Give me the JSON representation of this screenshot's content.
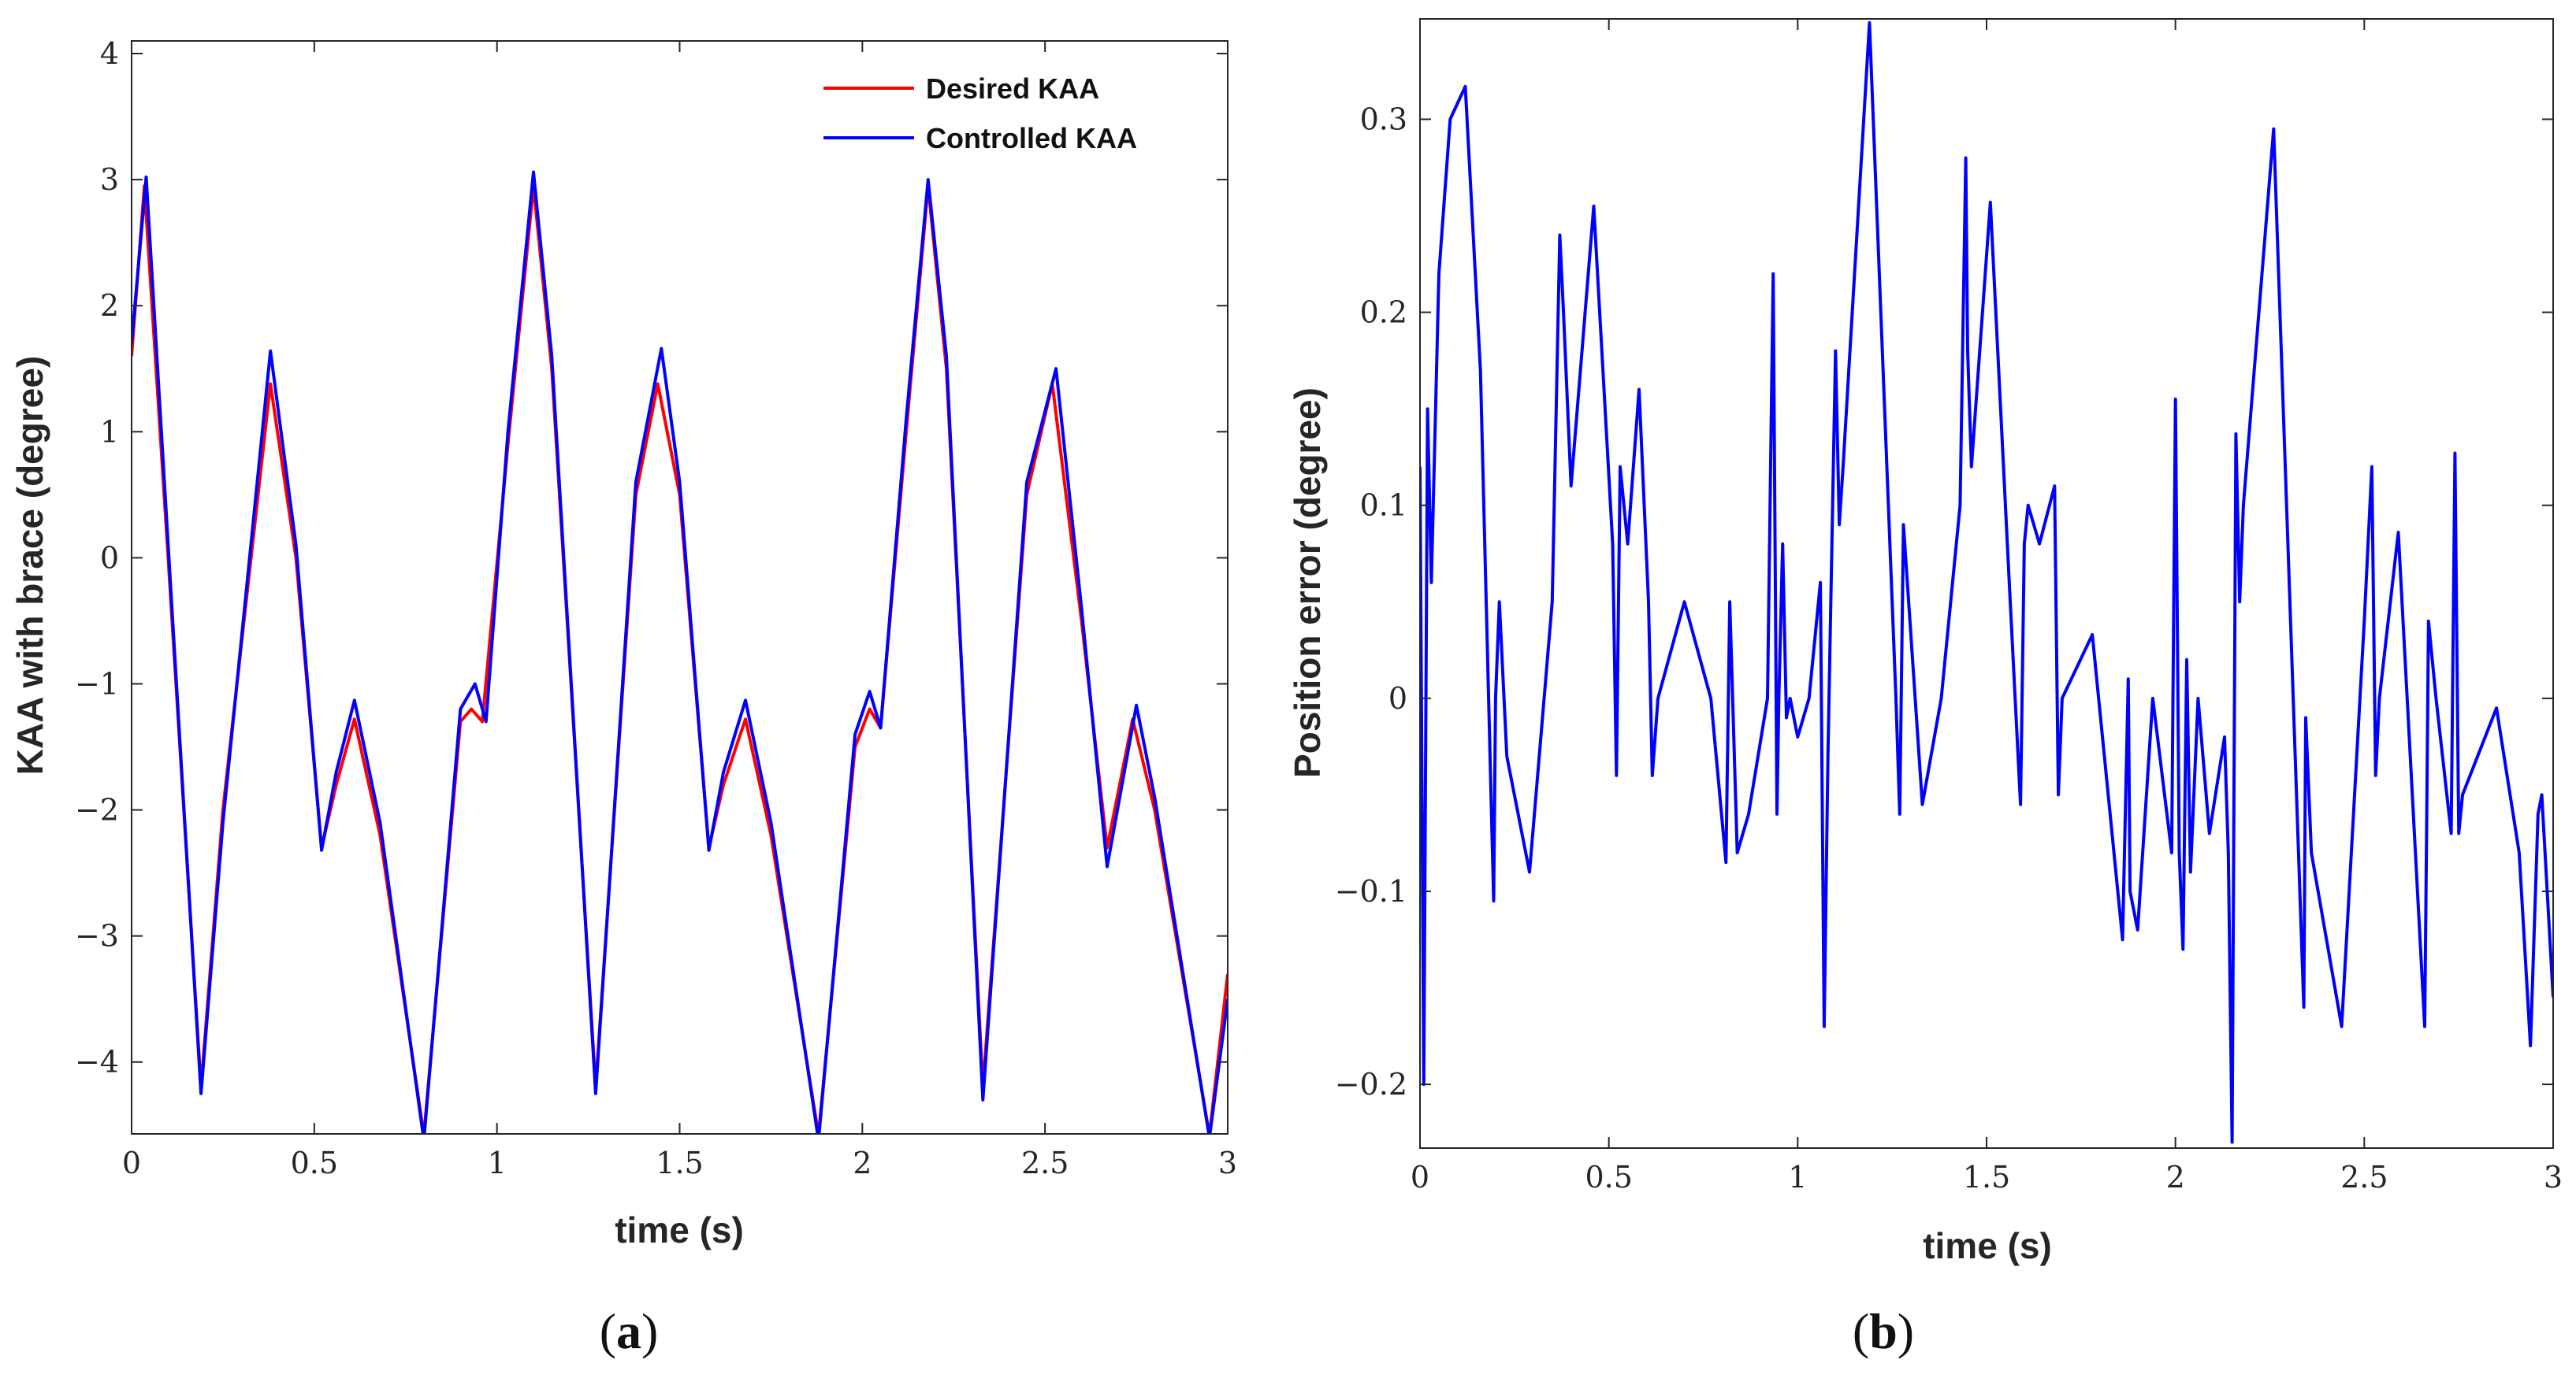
{
  "chart_data": [
    {
      "type": "line",
      "caption": {
        "open": "(",
        "letter": "a",
        "close": ")"
      },
      "xlabel": "time (s)",
      "ylabel": "KAA with brace (degree)",
      "xlim": [
        0,
        3
      ],
      "ylim": [
        -4.57,
        4.1
      ],
      "xticks": [
        0,
        0.5,
        1,
        1.5,
        2,
        2.5,
        3
      ],
      "xtick_labels": [
        "0",
        "0.5",
        "1",
        "1.5",
        "2",
        "2.5",
        "3"
      ],
      "yticks": [
        -4,
        -3,
        -2,
        -1,
        0,
        1,
        2,
        3,
        4
      ],
      "ytick_labels": [
        "−4",
        "−3",
        "−2",
        "−1",
        "0",
        "1",
        "2",
        "3",
        "4"
      ],
      "legend": {
        "position": "top-right",
        "entries": [
          "Desired KAA",
          "Controlled KAA"
        ]
      },
      "series": [
        {
          "name": "Desired KAA",
          "color": "#ff0000",
          "x": [
            0,
            0.035,
            0.1,
            0.19,
            0.25,
            0.38,
            0.45,
            0.52,
            0.56,
            0.61,
            0.68,
            0.8,
            0.9,
            0.93,
            0.96,
            1.03,
            1.1,
            1.15,
            1.27,
            1.38,
            1.44,
            1.5,
            1.58,
            1.62,
            1.68,
            1.75,
            1.88,
            1.98,
            2.02,
            2.05,
            2.12,
            2.18,
            2.23,
            2.33,
            2.45,
            2.52,
            2.6,
            2.67,
            2.74,
            2.8,
            2.95,
            3
          ],
          "y": [
            1.6,
            2.95,
            0.0,
            -4.2,
            -2.0,
            1.38,
            0.0,
            -2.3,
            -1.8,
            -1.28,
            -2.2,
            -4.58,
            -1.3,
            -1.2,
            -1.3,
            0.9,
            2.95,
            1.5,
            -4.2,
            0.5,
            1.38,
            0.5,
            -2.3,
            -1.8,
            -1.28,
            -2.2,
            -4.58,
            -1.5,
            -1.2,
            -1.35,
            1.0,
            2.95,
            1.5,
            -4.2,
            0.5,
            1.38,
            -0.5,
            -2.3,
            -1.28,
            -2.0,
            -4.58,
            -3.3
          ]
        },
        {
          "name": "Controlled KAA",
          "color": "#0000ff",
          "x": [
            0,
            0.04,
            0.1,
            0.19,
            0.25,
            0.38,
            0.45,
            0.52,
            0.56,
            0.61,
            0.68,
            0.8,
            0.9,
            0.94,
            0.97,
            1.03,
            1.1,
            1.15,
            1.27,
            1.38,
            1.45,
            1.5,
            1.58,
            1.62,
            1.68,
            1.75,
            1.88,
            1.98,
            2.02,
            2.05,
            2.12,
            2.18,
            2.23,
            2.33,
            2.45,
            2.53,
            2.6,
            2.67,
            2.75,
            2.8,
            2.95,
            3
          ],
          "y": [
            1.7,
            3.02,
            0.1,
            -4.25,
            -2.1,
            1.64,
            0.1,
            -2.32,
            -1.7,
            -1.13,
            -2.1,
            -4.62,
            -1.2,
            -1.0,
            -1.3,
            1.0,
            3.06,
            1.6,
            -4.25,
            0.6,
            1.66,
            0.6,
            -2.32,
            -1.7,
            -1.13,
            -2.1,
            -4.62,
            -1.4,
            -1.06,
            -1.35,
            1.1,
            3.0,
            1.6,
            -4.3,
            0.6,
            1.5,
            -0.4,
            -2.45,
            -1.17,
            -1.9,
            -4.6,
            -3.5
          ]
        }
      ]
    },
    {
      "type": "line",
      "caption": {
        "open": "(",
        "letter": "b",
        "close": ")"
      },
      "xlabel": "time (s)",
      "ylabel": "Position error (degree)",
      "xlim": [
        0,
        3
      ],
      "ylim": [
        -0.233,
        0.352
      ],
      "xticks": [
        0,
        0.5,
        1,
        1.5,
        2,
        2.5,
        3
      ],
      "xtick_labels": [
        "0",
        "0.5",
        "1",
        "1.5",
        "2",
        "2.5",
        "3"
      ],
      "yticks": [
        -0.2,
        -0.1,
        0,
        0.1,
        0.2,
        0.3
      ],
      "ytick_labels": [
        "−0.2",
        "−0.1",
        "0",
        "0.1",
        "0.2",
        "0.3"
      ],
      "series": [
        {
          "name": "Position error",
          "color": "#0000ff",
          "x": [
            0,
            0.01,
            0.02,
            0.03,
            0.05,
            0.08,
            0.12,
            0.16,
            0.195,
            0.2,
            0.21,
            0.23,
            0.29,
            0.35,
            0.37,
            0.38,
            0.4,
            0.46,
            0.51,
            0.52,
            0.53,
            0.55,
            0.58,
            0.605,
            0.615,
            0.63,
            0.7,
            0.77,
            0.81,
            0.82,
            0.84,
            0.87,
            0.92,
            0.935,
            0.945,
            0.95,
            0.96,
            0.97,
            0.98,
            1.0,
            1.03,
            1.06,
            1.07,
            1.08,
            1.1,
            1.11,
            1.12,
            1.19,
            1.26,
            1.27,
            1.28,
            1.33,
            1.38,
            1.43,
            1.445,
            1.45,
            1.46,
            1.51,
            1.56,
            1.59,
            1.6,
            1.61,
            1.64,
            1.68,
            1.69,
            1.7,
            1.78,
            1.86,
            1.875,
            1.88,
            1.9,
            1.94,
            1.99,
            2.0,
            2.01,
            2.02,
            2.03,
            2.04,
            2.06,
            2.09,
            2.13,
            2.14,
            2.15,
            2.16,
            2.17,
            2.18,
            2.26,
            2.34,
            2.345,
            2.36,
            2.44,
            2.5,
            2.52,
            2.53,
            2.54,
            2.59,
            2.66,
            2.665,
            2.67,
            2.69,
            2.73,
            2.74,
            2.75,
            2.76,
            2.85,
            2.91,
            2.94,
            2.96,
            2.97,
            3
          ],
          "y": [
            0.12,
            -0.2,
            0.15,
            0.06,
            0.22,
            0.3,
            0.317,
            0.17,
            -0.105,
            0.0,
            0.05,
            -0.03,
            -0.09,
            0.05,
            0.24,
            0.2,
            0.11,
            0.255,
            0.08,
            -0.04,
            0.12,
            0.08,
            0.16,
            0.05,
            -0.04,
            0.0,
            0.05,
            0.0,
            -0.085,
            0.05,
            -0.08,
            -0.06,
            0.0,
            0.22,
            -0.06,
            0.0,
            0.08,
            -0.01,
            0.0,
            -0.02,
            0.0,
            0.06,
            -0.17,
            -0.03,
            0.18,
            0.09,
            0.12,
            0.35,
            0.0,
            -0.06,
            0.09,
            -0.055,
            0.0,
            0.1,
            0.28,
            0.18,
            0.12,
            0.257,
            0.06,
            -0.055,
            0.08,
            0.1,
            0.08,
            0.11,
            -0.05,
            0.0,
            0.033,
            -0.125,
            0.01,
            -0.1,
            -0.12,
            0.0,
            -0.08,
            0.155,
            -0.08,
            -0.13,
            0.02,
            -0.09,
            0.0,
            -0.07,
            -0.02,
            -0.08,
            -0.23,
            0.137,
            0.05,
            0.1,
            0.295,
            -0.16,
            -0.01,
            -0.08,
            -0.17,
            0.04,
            0.12,
            -0.04,
            0.0,
            0.086,
            -0.17,
            -0.07,
            0.04,
            0.0,
            -0.07,
            0.127,
            -0.07,
            -0.05,
            -0.005,
            -0.08,
            -0.18,
            -0.06,
            -0.05,
            -0.155
          ]
        }
      ]
    }
  ]
}
